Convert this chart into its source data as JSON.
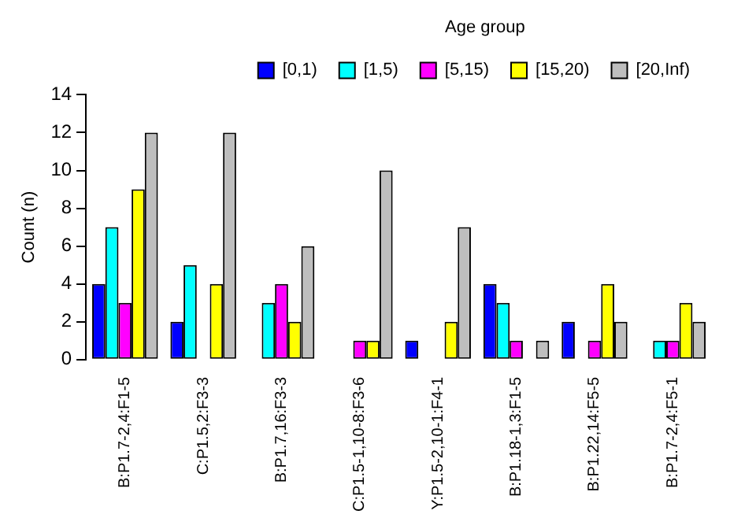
{
  "chart_data": {
    "type": "bar",
    "ylabel": "Count (n)",
    "legend_title": "Age group",
    "legend": "top right",
    "grid": false,
    "categories": [
      "B:P1.7-2,4:F1-5",
      "C:P1.5,2:F3-3",
      "B:P1.7,16:F3-3",
      "C:P1.5-1,10-8:F3-6",
      "Y:P1.5-2,10-1:F4-1",
      "B:P1.18-1,3:F1-5",
      "B:P1.22,14:F5-5",
      "B:P1.7-2,4:F5-1"
    ],
    "ylim": [
      0,
      14
    ],
    "yticks": [
      0,
      2,
      4,
      6,
      8,
      10,
      12,
      14
    ],
    "series": [
      {
        "name": "[0,1)",
        "color": "#0000ff",
        "values": [
          4,
          2,
          0,
          0,
          1,
          4,
          2,
          0
        ]
      },
      {
        "name": "[1,5)",
        "color": "#00ffff",
        "values": [
          7,
          5,
          3,
          0,
          0,
          3,
          0,
          1
        ]
      },
      {
        "name": "[5,15)",
        "color": "#ff00ff",
        "values": [
          3,
          0,
          4,
          1,
          0,
          1,
          1,
          1
        ]
      },
      {
        "name": "[15,20)",
        "color": "#ffff00",
        "values": [
          9,
          4,
          2,
          1,
          2,
          0,
          4,
          3
        ]
      },
      {
        "name": "[20,Inf)",
        "color": "#bebebe",
        "values": [
          12,
          12,
          6,
          10,
          7,
          1,
          2,
          2
        ]
      }
    ]
  }
}
